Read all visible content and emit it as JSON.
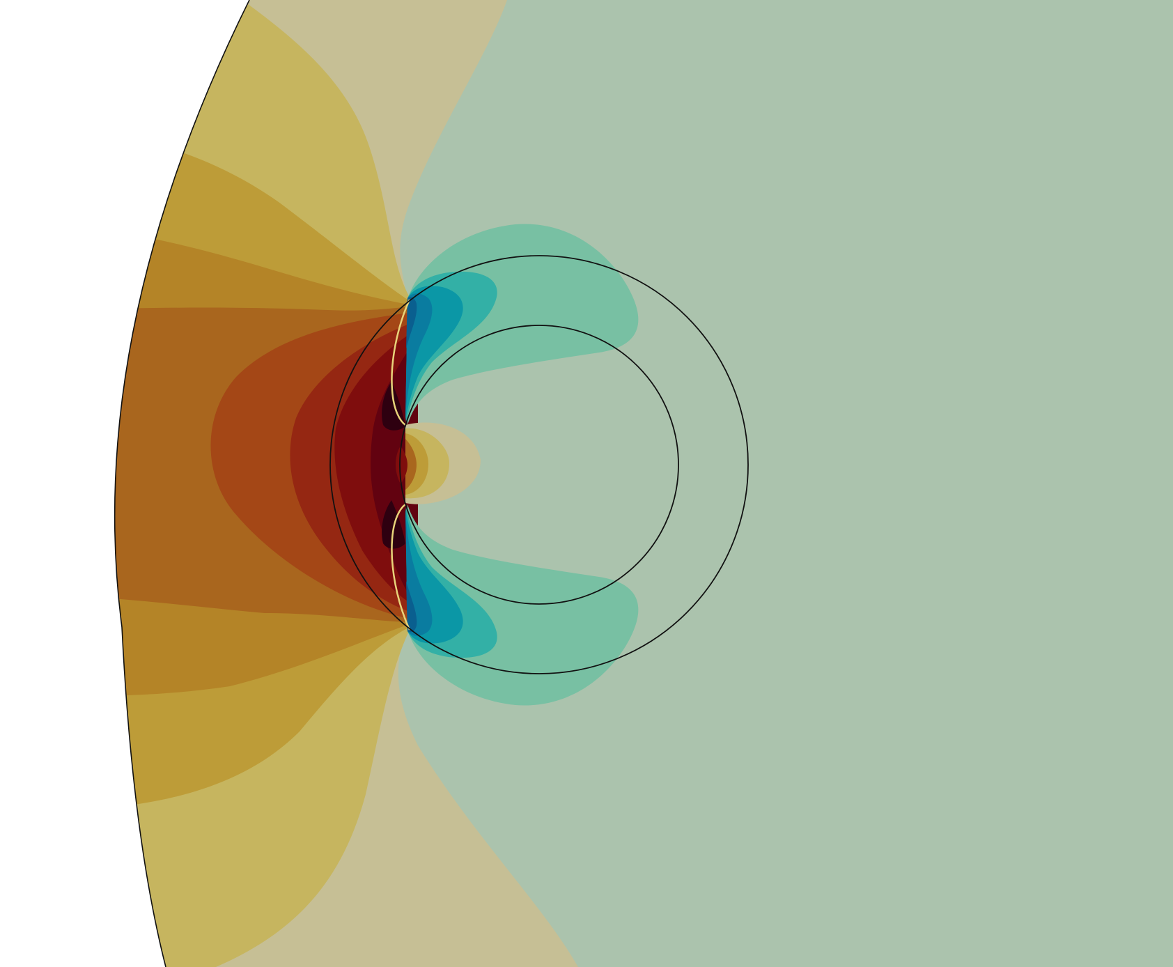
{
  "scene": {
    "background_color": "#ffffff",
    "domain_fill_color": "#abc3ad",
    "outline_color": "#111111",
    "palette": {
      "far_negative": "#abc3ad",
      "neg_1": "#78c0a3",
      "neg_2": "#33b0a6",
      "neg_3": "#0b97a6",
      "neg_4": "#0a7ca0",
      "neg_5": "#0a5f8f",
      "neutral": "#c6bf95",
      "pos_1": "#c6b55f",
      "pos_2": "#bd9c38",
      "pos_3": "#b48427",
      "pos_4": "#a9661e",
      "pos_5": "#a44716",
      "pos_6": "#952712",
      "pos_7": "#7f0d0d",
      "pos_8": "#620210",
      "pos_9": "#2e0010"
    }
  }
}
